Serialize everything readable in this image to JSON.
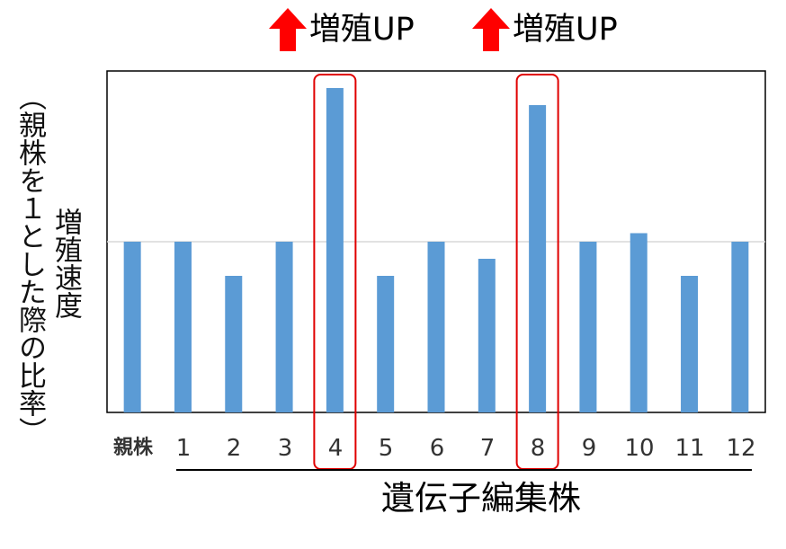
{
  "callouts": [
    {
      "label": "増殖UP",
      "icon": "up-arrow-icon",
      "color": "#ff0000"
    },
    {
      "label": "増殖UP",
      "icon": "up-arrow-icon",
      "color": "#ff0000"
    }
  ],
  "y_axis_title": {
    "line1": "増殖速度",
    "line2": "（親株を１とした際の比率）"
  },
  "x_axis_title": "遺伝子編集株",
  "colors": {
    "bar": "#5b9bd5",
    "highlight": "#e00000",
    "reference_line": "#d9d9d9",
    "axis": "#000000"
  },
  "chart_data": {
    "type": "bar",
    "title": "",
    "xlabel": "遺伝子編集株",
    "ylabel": "増殖速度（親株を１とした際の比率）",
    "categories": [
      "親株",
      "1",
      "2",
      "3",
      "4",
      "5",
      "6",
      "7",
      "8",
      "9",
      "10",
      "11",
      "12"
    ],
    "values": [
      1.0,
      1.0,
      0.8,
      1.0,
      1.9,
      0.8,
      1.0,
      0.9,
      1.8,
      1.0,
      1.05,
      0.8,
      1.0
    ],
    "ylim": [
      0,
      2.0
    ],
    "reference_line": 1.0,
    "highlighted": [
      "4",
      "8"
    ],
    "grid": false,
    "legend": "none",
    "y_tick_labels_shown": false
  }
}
